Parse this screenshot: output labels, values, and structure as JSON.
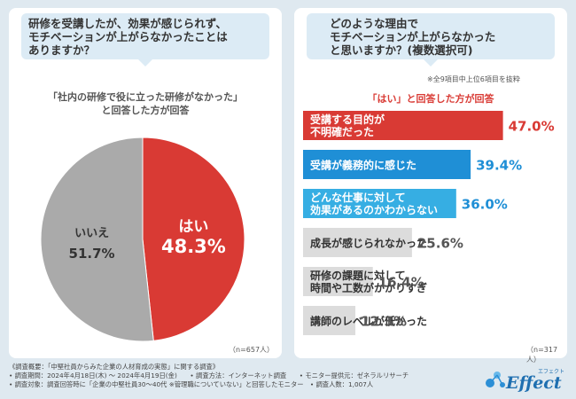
{
  "left": {
    "question": [
      "研修を受講したが、効果が感じられず、",
      "モチベーションが上がらなかったことは",
      "ありますか？"
    ],
    "caption": [
      "「社内の研修で役に立った研修がなかった」",
      "と回答した方が回答"
    ],
    "n": "（n=657人）"
  },
  "right": {
    "question": [
      "どのような理由で",
      "モチベーションが上がらなかった",
      "と思いますか？(複数選択可)"
    ],
    "note": "※全9項目中上位6項目を抜粋",
    "caption": "「はい」と回答した方が回答",
    "n": "（n=317人）"
  },
  "chart_data": [
    {
      "type": "pie",
      "labels": [
        "はい",
        "いいえ"
      ],
      "values": [
        48.3,
        51.7
      ],
      "value_labels": [
        "48.3%",
        "51.7%"
      ],
      "colors": [
        "#d93a34",
        "#aaaaaa"
      ]
    },
    {
      "type": "bar",
      "orientation": "horizontal",
      "categories": [
        [
          "受講する目的が",
          "不明確だった"
        ],
        [
          "受講が義務的に感じた"
        ],
        [
          "どんな仕事に対して",
          "効果があるのかわからない"
        ],
        [
          "成長が感じられなかった"
        ],
        [
          "研修の課題に対して、",
          "時間や工数がかかりすぎ"
        ],
        [
          "講師のレベルが低かった"
        ]
      ],
      "values": [
        47.0,
        39.4,
        36.0,
        25.6,
        16.4,
        12.3
      ],
      "value_labels": [
        "47.0%",
        "39.4%",
        "36.0%",
        "25.6%",
        "16.4%",
        "12.3%"
      ],
      "colors": [
        "#d93a34",
        "#1f8fd6",
        "#36aee3",
        "#dcdcdc",
        "#dcdcdc",
        "#dcdcdc"
      ],
      "text_colors": [
        "#ffffff",
        "#ffffff",
        "#ffffff",
        "#333333",
        "#333333",
        "#333333"
      ],
      "value_colors": [
        "#d93a34",
        "#1f8fd6",
        "#1f8fd6",
        "#555555",
        "#555555",
        "#555555"
      ],
      "xlim": [
        0,
        50
      ]
    }
  ],
  "footer": [
    "《調査概要：「中堅社員からみた企業の人材育成の実態」に関する調査》",
    "• 調査期間：2024年4月18日(木) ～ 2024年4月19日(金)　　• 調査方法：インターネット調査　　• モニター提供元：ゼネラルリサーチ",
    "• 調査対象：調査回答時に「企業の中堅社員30～40代 ※管理職についていない」と回答したモニター　• 調査人数：1,007人"
  ],
  "logo": {
    "main": "Effect",
    "kana": "エフェクト"
  }
}
